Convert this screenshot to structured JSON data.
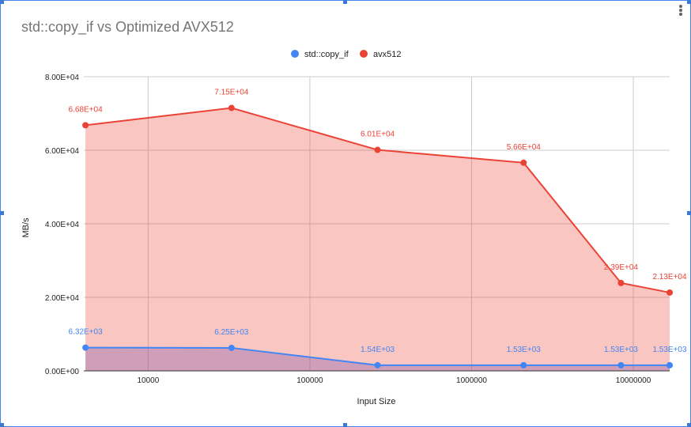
{
  "chart_data": {
    "type": "area",
    "title": "std::copy_if vs Optimized AVX512",
    "xlabel": "Input Size",
    "ylabel": "MB/s",
    "xscale": "log",
    "xlim": [
      4000,
      16777216
    ],
    "ylim": [
      0,
      80000
    ],
    "grid": true,
    "legend_position": "top",
    "x_ticks": [
      10000,
      100000,
      1000000,
      10000000
    ],
    "x_tick_labels": [
      "10000",
      "100000",
      "1000000",
      "10000000"
    ],
    "y_ticks": [
      0,
      20000,
      40000,
      60000,
      80000
    ],
    "y_tick_labels": [
      "0.00E+00",
      "2.00E+04",
      "4.00E+04",
      "6.00E+04",
      "8.00E+04"
    ],
    "x": [
      4096,
      32768,
      262144,
      2097152,
      8388608,
      16777216
    ],
    "series": [
      {
        "name": "std::copy_if",
        "color": "#4285f4",
        "values": [
          6320,
          6250,
          1540,
          1530,
          1530,
          1530
        ],
        "data_labels": [
          "6.32E+03",
          "6.25E+03",
          "1.54E+03",
          "1.53E+03",
          "1.53E+03",
          "1.53E+03"
        ]
      },
      {
        "name": "avx512",
        "color": "#ea4335",
        "values": [
          66800,
          71500,
          60100,
          56600,
          23900,
          21300
        ],
        "data_labels": [
          "6.68E+04",
          "7.15E+04",
          "6.01E+04",
          "5.66E+04",
          "2.39E+04",
          "2.13E+04"
        ]
      }
    ]
  }
}
